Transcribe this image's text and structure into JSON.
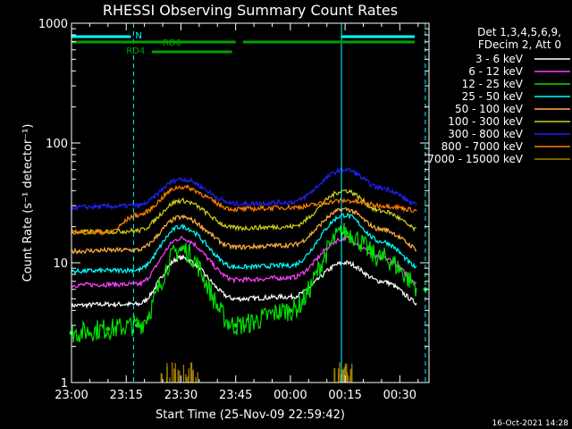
{
  "chart_data": {
    "type": "line",
    "title": "RHESSI Observing Summary Count Rates",
    "ylabel": "Count Rate (s⁻¹ detector⁻¹)",
    "xlabel": "Start Time (25-Nov-09 22:59:42)",
    "y_scale": "log",
    "ylim": [
      1,
      1000
    ],
    "xlim": [
      "23:00",
      "00:38"
    ],
    "x_ticks": [
      "23:00",
      "23:15",
      "23:30",
      "23:45",
      "00:00",
      "00:15",
      "00:30"
    ],
    "y_ticks": [
      "1",
      "10",
      "100",
      "1000"
    ],
    "legend_header": [
      "Det 1,3,4,5,6,9,",
      "FDecim 2, Att 0"
    ],
    "timestamp": "16-Oct-2021 14:28",
    "flag_labels": [
      "N",
      "RD0",
      "RD4"
    ],
    "series": [
      {
        "name": "3 - 6 keV",
        "color": "#ffffff",
        "x": [
          "23:00",
          "23:10",
          "23:18",
          "23:30",
          "23:45",
          "00:00",
          "00:15",
          "00:25",
          "00:37"
        ],
        "y": [
          4.4,
          4.5,
          4.5,
          11,
          5,
          5.2,
          10,
          7,
          4.4
        ]
      },
      {
        "name": "6 - 12 keV",
        "color": "#ff40ff",
        "x": [
          "23:00",
          "23:10",
          "23:18",
          "23:30",
          "23:45",
          "00:00",
          "00:15",
          "00:25",
          "00:37"
        ],
        "y": [
          6.5,
          6.6,
          6.6,
          16,
          7.2,
          7.5,
          16,
          11,
          6.5
        ]
      },
      {
        "name": "12 - 25 keV",
        "color": "#00e000",
        "x": [
          "23:00",
          "23:10",
          "23:18",
          "23:30",
          "23:45",
          "00:00",
          "00:15",
          "00:25",
          "00:37"
        ],
        "y": [
          2.6,
          2.8,
          3,
          13,
          3,
          4,
          18,
          11,
          6
        ]
      },
      {
        "name": "25 - 50 keV",
        "color": "#00ffff",
        "x": [
          "23:00",
          "23:10",
          "23:18",
          "23:30",
          "23:45",
          "00:00",
          "00:15",
          "00:25",
          "00:37"
        ],
        "y": [
          8.5,
          8.6,
          8.7,
          20,
          9.2,
          9.5,
          25,
          15,
          8.5
        ]
      },
      {
        "name": "50 - 100 keV",
        "color": "#ffb040",
        "x": [
          "23:00",
          "23:10",
          "23:18",
          "23:30",
          "23:45",
          "00:00",
          "00:15",
          "00:25",
          "00:37"
        ],
        "y": [
          12.5,
          12.7,
          12.8,
          24,
          13.5,
          14,
          28,
          19,
          12.5
        ]
      },
      {
        "name": "100 - 300 keV",
        "color": "#d0d020",
        "x": [
          "23:00",
          "23:10",
          "23:18",
          "23:30",
          "23:45",
          "00:00",
          "00:15",
          "00:25",
          "00:37"
        ],
        "y": [
          18,
          18.2,
          18.5,
          33,
          19.5,
          20,
          40,
          27,
          18
        ]
      },
      {
        "name": "300 - 800 keV",
        "color": "#2020ff",
        "x": [
          "23:00",
          "23:10",
          "23:18",
          "23:30",
          "23:45",
          "00:00",
          "00:15",
          "00:25",
          "00:37"
        ],
        "y": [
          29,
          29.5,
          30,
          50,
          31,
          32,
          60,
          42,
          29
        ]
      },
      {
        "name": "800 - 7000 keV",
        "color": "#ff8000",
        "x": [
          "23:00",
          "23:10",
          "23:18",
          "23:30",
          "23:45",
          "00:00",
          "00:15",
          "00:25",
          "00:37"
        ],
        "y": [
          18,
          18,
          25,
          43,
          28,
          29,
          33,
          30,
          27
        ]
      },
      {
        "name": "7000 - 15000 keV",
        "color": "#a08000",
        "x": [
          "23:24",
          "23:29",
          "23:35",
          "00:12",
          "00:17"
        ],
        "y": [
          1.1,
          1.4,
          1.3,
          1.2,
          1.4
        ]
      }
    ]
  }
}
